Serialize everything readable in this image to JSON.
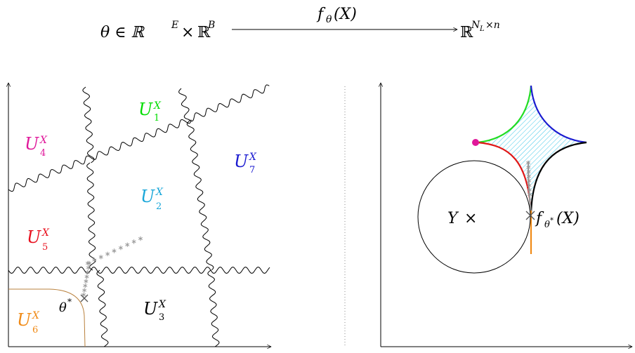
{
  "header": {
    "domain": "θ ∈ ℝ",
    "domain_sup1": "E",
    "times1": "×",
    "domain_r2": "ℝ",
    "domain_sup2": "B",
    "map_label": "f",
    "map_sub": "θ",
    "map_arg": "(X)",
    "codomain": "ℝ",
    "codomain_sup": "N",
    "codomain_sup_sub": "L",
    "codomain_sup_rest": "×n"
  },
  "left_panel": {
    "regions": [
      {
        "id": "U1",
        "letter": "U",
        "sub": "1",
        "sup": "X",
        "color": "#00dd00"
      },
      {
        "id": "U2",
        "letter": "U",
        "sub": "2",
        "sup": "X",
        "color": "#1aa7d9"
      },
      {
        "id": "U3",
        "letter": "U",
        "sub": "3",
        "sup": "X",
        "color": "#000000"
      },
      {
        "id": "U4",
        "letter": "U",
        "sub": "4",
        "sup": "X",
        "color": "#e0179a"
      },
      {
        "id": "U5",
        "letter": "U",
        "sub": "5",
        "sup": "X",
        "color": "#e8101e"
      },
      {
        "id": "U6",
        "letter": "U",
        "sub": "6",
        "sup": "X",
        "color": "#f08a16"
      },
      {
        "id": "U7",
        "letter": "U",
        "sub": "7",
        "sup": "X",
        "color": "#1a1ad0"
      }
    ],
    "theta_star": "θ",
    "theta_star_sup": "*",
    "stars_color": "#999999",
    "boundary_u6_color": "#b9803c"
  },
  "right_panel": {
    "y_label": "Y",
    "y_mark": "×",
    "f_label": "f",
    "f_sub": "θ",
    "f_sub_sup": "*",
    "f_arg": "(X)",
    "colors": {
      "green": "#22dd22",
      "blue": "#1a1ad0",
      "red": "#e01818",
      "black": "#000000",
      "orange": "#f08a16",
      "hatch": "#3cc6e8",
      "dot": "#e0179a",
      "path": "#999999"
    }
  }
}
